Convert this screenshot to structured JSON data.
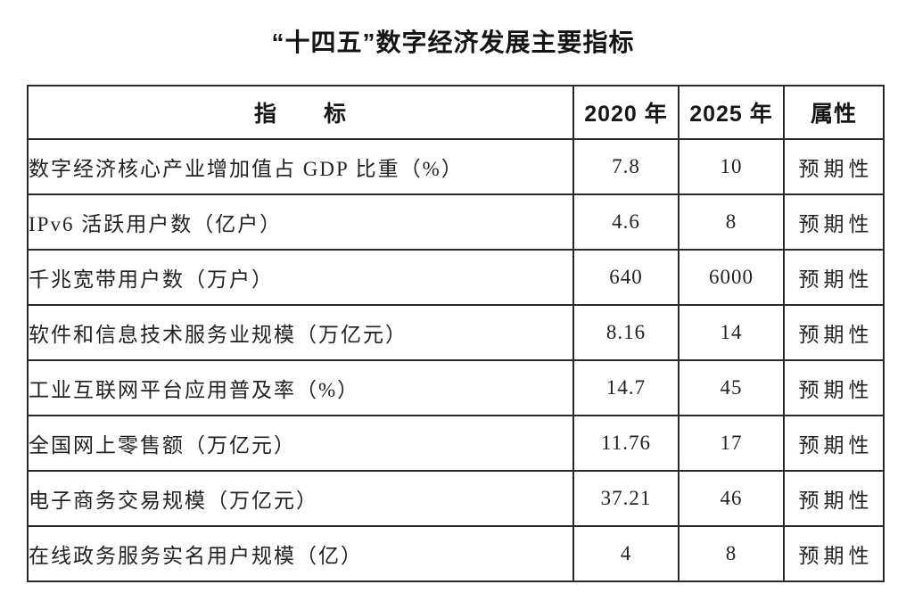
{
  "title": "“十四五”数字经济发展主要指标",
  "table": {
    "headers": {
      "indicator": "指　　标",
      "y2020": "2020 年",
      "y2025": "2025 年",
      "attribute": "属性"
    },
    "rows": [
      {
        "indicator": "数字经济核心产业增加值占 GDP 比重（%）",
        "y2020": "7.8",
        "y2025": "10",
        "attribute": "预期性"
      },
      {
        "indicator": "IPv6 活跃用户数（亿户）",
        "y2020": "4.6",
        "y2025": "8",
        "attribute": "预期性"
      },
      {
        "indicator": "千兆宽带用户数（万户）",
        "y2020": "640",
        "y2025": "6000",
        "attribute": "预期性"
      },
      {
        "indicator": "软件和信息技术服务业规模（万亿元）",
        "y2020": "8.16",
        "y2025": "14",
        "attribute": "预期性"
      },
      {
        "indicator": "工业互联网平台应用普及率（%）",
        "y2020": "14.7",
        "y2025": "45",
        "attribute": "预期性"
      },
      {
        "indicator": "全国网上零售额（万亿元）",
        "y2020": "11.76",
        "y2025": "17",
        "attribute": "预期性"
      },
      {
        "indicator": "电子商务交易规模（万亿元）",
        "y2020": "37.21",
        "y2025": "46",
        "attribute": "预期性"
      },
      {
        "indicator": "在线政务服务实名用户规模（亿）",
        "y2020": "4",
        "y2025": "8",
        "attribute": "预期性"
      }
    ]
  },
  "colors": {
    "text": "#1f1f1f",
    "border": "#2a2a2a",
    "background": "#ffffff"
  }
}
